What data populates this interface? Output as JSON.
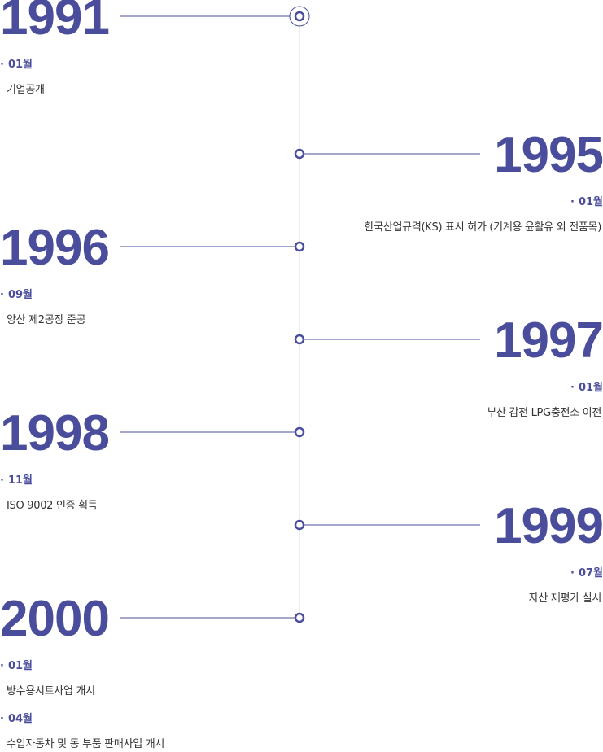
{
  "timeline": [
    {
      "year": "1991",
      "events": [
        {
          "month": "01월",
          "text": "기업공개"
        }
      ]
    },
    {
      "year": "1995",
      "events": [
        {
          "month": "01월",
          "text": "한국산업규격(KS) 표시 허가 (기계용 윤활유 외 전품목)"
        }
      ]
    },
    {
      "year": "1996",
      "events": [
        {
          "month": "09월",
          "text": "양산 제2공장 준공"
        }
      ]
    },
    {
      "year": "1997",
      "events": [
        {
          "month": "01월",
          "text": "부산 감전 LPG충전소 이전"
        }
      ]
    },
    {
      "year": "1998",
      "events": [
        {
          "month": "11월",
          "text": "ISO 9002 인증 획득"
        }
      ]
    },
    {
      "year": "1999",
      "events": [
        {
          "month": "07월",
          "text": "자산 재평가 실시"
        }
      ]
    },
    {
      "year": "2000",
      "events": [
        {
          "month": "01월",
          "text": "방수용시트사업 개시"
        },
        {
          "month": "04월",
          "text": "수입자동차 및 동 부품 판매사업 개시"
        }
      ]
    }
  ]
}
